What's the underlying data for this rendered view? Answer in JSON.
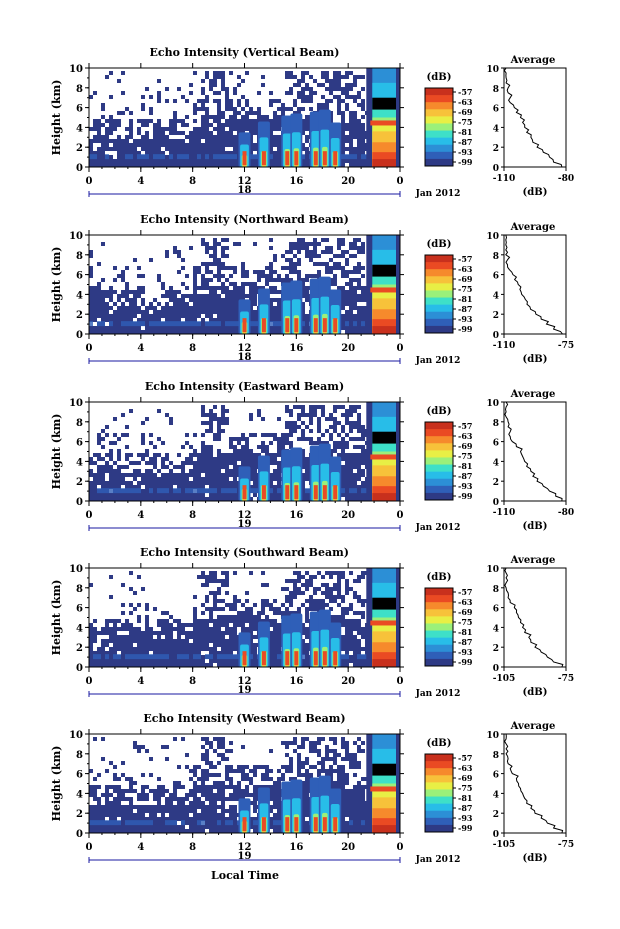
{
  "figure": {
    "xlabel": "Local Time",
    "date_label": "Jan 2012",
    "colorbar_unit": "(dB)",
    "average_title": "Average",
    "average_xlabel": "(dB)",
    "colormap": [
      "#2e3a85",
      "#2f5fb8",
      "#2c8fd6",
      "#28bde8",
      "#3ee0c8",
      "#9bf07a",
      "#e8ef45",
      "#f7c23a",
      "#f68a2c",
      "#ea4a23",
      "#c8301d"
    ]
  },
  "chart_data": [
    {
      "type": "heatmap",
      "title": "Echo Intensity (Vertical Beam)",
      "ylabel": "Height (km)",
      "x_ticks": [
        "0",
        "4",
        "8",
        "12",
        "16",
        "20",
        "0"
      ],
      "xlim": [
        0,
        24
      ],
      "day_label": "18",
      "y_ticks": [
        "0",
        "2",
        "4",
        "6",
        "8",
        "10"
      ],
      "ylim": [
        0,
        10
      ],
      "colorbar_ticks": [
        "-57",
        "-63",
        "-69",
        "-75",
        "-81",
        "-87",
        "-93",
        "-99"
      ],
      "convective_cells_hours": [
        12,
        13.5,
        15.3,
        16,
        17.5,
        18.2,
        19
      ],
      "profile": {
        "xlim": [
          -110,
          -80
        ],
        "x_ticks": [
          "-110",
          "-80"
        ],
        "y_ticks": [
          "0",
          "2",
          "4",
          "6",
          "8",
          "10"
        ],
        "height_km": [
          0,
          0.5,
          1,
          1.5,
          2,
          2.5,
          3,
          3.5,
          4,
          4.5,
          5,
          5.5,
          6,
          6.5,
          7,
          7.5,
          8,
          8.5,
          9,
          9.5,
          10
        ],
        "values_db": [
          -82,
          -86,
          -88,
          -91,
          -94,
          -96,
          -97,
          -99,
          -100,
          -101,
          -102,
          -104,
          -105,
          -107,
          -107,
          -108,
          -108,
          -109,
          -109,
          -109,
          -109
        ]
      }
    },
    {
      "type": "heatmap",
      "title": "Echo Intensity (Northward Beam)",
      "ylabel": "Height (km)",
      "x_ticks": [
        "0",
        "4",
        "8",
        "12",
        "16",
        "20",
        "0"
      ],
      "xlim": [
        0,
        24
      ],
      "day_label": "18",
      "y_ticks": [
        "0",
        "2",
        "4",
        "6",
        "8",
        "10"
      ],
      "ylim": [
        0,
        10
      ],
      "colorbar_ticks": [
        "-57",
        "-63",
        "-69",
        "-75",
        "-81",
        "-87",
        "-93",
        "-99"
      ],
      "convective_cells_hours": [
        12,
        13.5,
        15.3,
        16,
        17.5,
        18.2,
        19
      ],
      "profile": {
        "xlim": [
          -110,
          -75
        ],
        "x_ticks": [
          "-110",
          "-75"
        ],
        "y_ticks": [
          "0",
          "2",
          "4",
          "6",
          "8",
          "10"
        ],
        "height_km": [
          0,
          0.5,
          1,
          1.5,
          2,
          2.5,
          3,
          3.5,
          4,
          4.5,
          5,
          5.5,
          6,
          6.5,
          7,
          7.5,
          8,
          8.5,
          9,
          9.5,
          10
        ],
        "values_db": [
          -77,
          -82,
          -86,
          -89,
          -92,
          -95,
          -97,
          -98,
          -100,
          -101,
          -102,
          -104,
          -105,
          -107,
          -108,
          -108,
          -109,
          -109,
          -109,
          -109,
          -109
        ]
      }
    },
    {
      "type": "heatmap",
      "title": "Echo Intensity (Eastward Beam)",
      "ylabel": "Height (km)",
      "x_ticks": [
        "0",
        "4",
        "8",
        "12",
        "16",
        "20",
        "0"
      ],
      "xlim": [
        0,
        24
      ],
      "day_label": "19",
      "y_ticks": [
        "0",
        "2",
        "4",
        "6",
        "8",
        "10"
      ],
      "ylim": [
        0,
        10
      ],
      "colorbar_ticks": [
        "-57",
        "-63",
        "-69",
        "-75",
        "-81",
        "-87",
        "-93",
        "-99"
      ],
      "convective_cells_hours": [
        12,
        13.5,
        15.3,
        16,
        17.5,
        18.2,
        19
      ],
      "profile": {
        "xlim": [
          -110,
          -80
        ],
        "x_ticks": [
          "-110",
          "-80"
        ],
        "y_ticks": [
          "0",
          "2",
          "4",
          "6",
          "8",
          "10"
        ],
        "height_km": [
          0,
          0.5,
          1,
          1.5,
          2,
          2.5,
          3,
          3.5,
          4,
          4.5,
          5,
          5.5,
          6,
          6.5,
          7,
          7.5,
          8,
          8.5,
          9,
          9.5,
          10
        ],
        "values_db": [
          -82,
          -85,
          -88,
          -91,
          -94,
          -96,
          -97,
          -99,
          -100,
          -101,
          -102,
          -104,
          -106,
          -107,
          -107,
          -108,
          -108,
          -109,
          -109,
          -109,
          -109
        ]
      }
    },
    {
      "type": "heatmap",
      "title": "Echo Intensity (Southward Beam)",
      "ylabel": "Height (km)",
      "x_ticks": [
        "0",
        "4",
        "8",
        "12",
        "16",
        "20",
        "0"
      ],
      "xlim": [
        0,
        24
      ],
      "day_label": "19",
      "y_ticks": [
        "0",
        "2",
        "4",
        "6",
        "8",
        "10"
      ],
      "ylim": [
        0,
        10
      ],
      "colorbar_ticks": [
        "-57",
        "-63",
        "-69",
        "-75",
        "-81",
        "-87",
        "-93",
        "-99"
      ],
      "convective_cells_hours": [
        12,
        13.5,
        15.3,
        16,
        17.5,
        18.2,
        19
      ],
      "profile": {
        "xlim": [
          -105,
          -75
        ],
        "x_ticks": [
          "-105",
          "-75"
        ],
        "y_ticks": [
          "0",
          "2",
          "4",
          "6",
          "8",
          "10"
        ],
        "height_km": [
          0,
          0.5,
          1,
          1.5,
          2,
          2.5,
          3,
          3.5,
          4,
          4.5,
          5,
          5.5,
          6,
          6.5,
          7,
          7.5,
          8,
          8.5,
          9,
          9.5,
          10
        ],
        "values_db": [
          -77,
          -81,
          -84,
          -87,
          -90,
          -92,
          -93,
          -95,
          -96,
          -97,
          -98,
          -99,
          -100,
          -102,
          -103,
          -103,
          -104,
          -104,
          -104,
          -104,
          -104
        ]
      }
    },
    {
      "type": "heatmap",
      "title": "Echo Intensity (Westward Beam)",
      "ylabel": "Height (km)",
      "x_ticks": [
        "0",
        "4",
        "8",
        "12",
        "16",
        "20",
        "0"
      ],
      "xlim": [
        0,
        24
      ],
      "day_label": "19",
      "y_ticks": [
        "0",
        "2",
        "4",
        "6",
        "8",
        "10"
      ],
      "ylim": [
        0,
        10
      ],
      "colorbar_ticks": [
        "-57",
        "-63",
        "-69",
        "-75",
        "-81",
        "-87",
        "-93",
        "-99"
      ],
      "convective_cells_hours": [
        12,
        13.5,
        15.3,
        16,
        17.5,
        18.2,
        19
      ],
      "profile": {
        "xlim": [
          -105,
          -75
        ],
        "x_ticks": [
          "-105",
          "-75"
        ],
        "y_ticks": [
          "0",
          "2",
          "4",
          "6",
          "8",
          "10"
        ],
        "height_km": [
          0,
          0.5,
          1,
          1.5,
          2,
          2.5,
          3,
          3.5,
          4,
          4.5,
          5,
          5.5,
          6,
          6.5,
          7,
          7.5,
          8,
          8.5,
          9,
          9.5,
          10
        ],
        "values_db": [
          -77,
          -81,
          -84,
          -87,
          -90,
          -92,
          -94,
          -95,
          -96,
          -97,
          -98,
          -99,
          -101,
          -102,
          -103,
          -103,
          -104,
          -104,
          -104,
          -104,
          -104
        ]
      }
    }
  ]
}
